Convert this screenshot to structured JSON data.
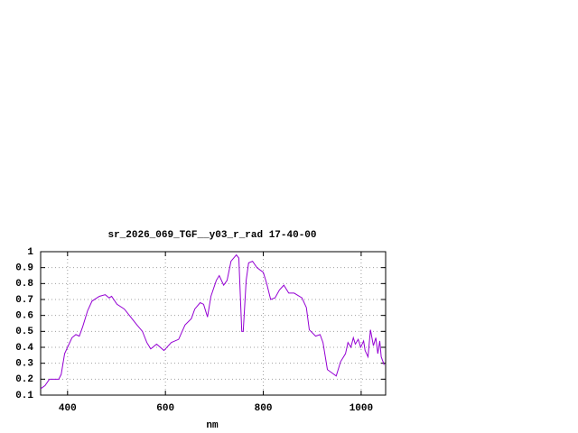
{
  "chart_data": {
    "type": "line",
    "title": "sr_2026_069_TGF__y03_r_rad 17-40-00",
    "x_label": "nm",
    "x": [
      345,
      354,
      363,
      372,
      382,
      387,
      394,
      400,
      409,
      417,
      424,
      431,
      441,
      450,
      465,
      477,
      485,
      490,
      501,
      516,
      529,
      542,
      553,
      562,
      570,
      582,
      597,
      612,
      627,
      640,
      653,
      660,
      671,
      678,
      686,
      693,
      704,
      710,
      719,
      726,
      734,
      745,
      750,
      756,
      759,
      765,
      770,
      778,
      787,
      800,
      807,
      815,
      824,
      833,
      842,
      852,
      863,
      879,
      888,
      894,
      907,
      916,
      922,
      931,
      940,
      949,
      958,
      968,
      973,
      979,
      984,
      988,
      994,
      999,
      1005,
      1008,
      1014,
      1019,
      1025,
      1030,
      1034,
      1038,
      1041,
      1047
    ],
    "series": [
      {
        "color": "#9400d3",
        "values": [
          0.14,
          0.16,
          0.2,
          0.2,
          0.2,
          0.23,
          0.36,
          0.4,
          0.46,
          0.48,
          0.47,
          0.53,
          0.63,
          0.69,
          0.72,
          0.73,
          0.71,
          0.72,
          0.67,
          0.64,
          0.59,
          0.54,
          0.5,
          0.43,
          0.39,
          0.42,
          0.38,
          0.43,
          0.45,
          0.54,
          0.58,
          0.64,
          0.68,
          0.67,
          0.59,
          0.72,
          0.82,
          0.85,
          0.79,
          0.82,
          0.94,
          0.98,
          0.96,
          0.5,
          0.5,
          0.82,
          0.93,
          0.94,
          0.9,
          0.87,
          0.8,
          0.7,
          0.71,
          0.76,
          0.79,
          0.74,
          0.74,
          0.71,
          0.65,
          0.51,
          0.47,
          0.48,
          0.43,
          0.26,
          0.24,
          0.22,
          0.31,
          0.36,
          0.43,
          0.4,
          0.46,
          0.42,
          0.45,
          0.4,
          0.44,
          0.38,
          0.34,
          0.51,
          0.41,
          0.46,
          0.36,
          0.44,
          0.34,
          0.29
        ]
      }
    ],
    "xlim": [
      345,
      1050
    ],
    "xticks": [
      400,
      600,
      800,
      1000
    ],
    "ylim": [
      0.1,
      1
    ],
    "yticks": [
      0.1,
      0.2,
      0.3,
      0.4,
      0.5,
      0.6,
      0.7,
      0.8,
      0.9,
      1
    ],
    "grid": true
  }
}
